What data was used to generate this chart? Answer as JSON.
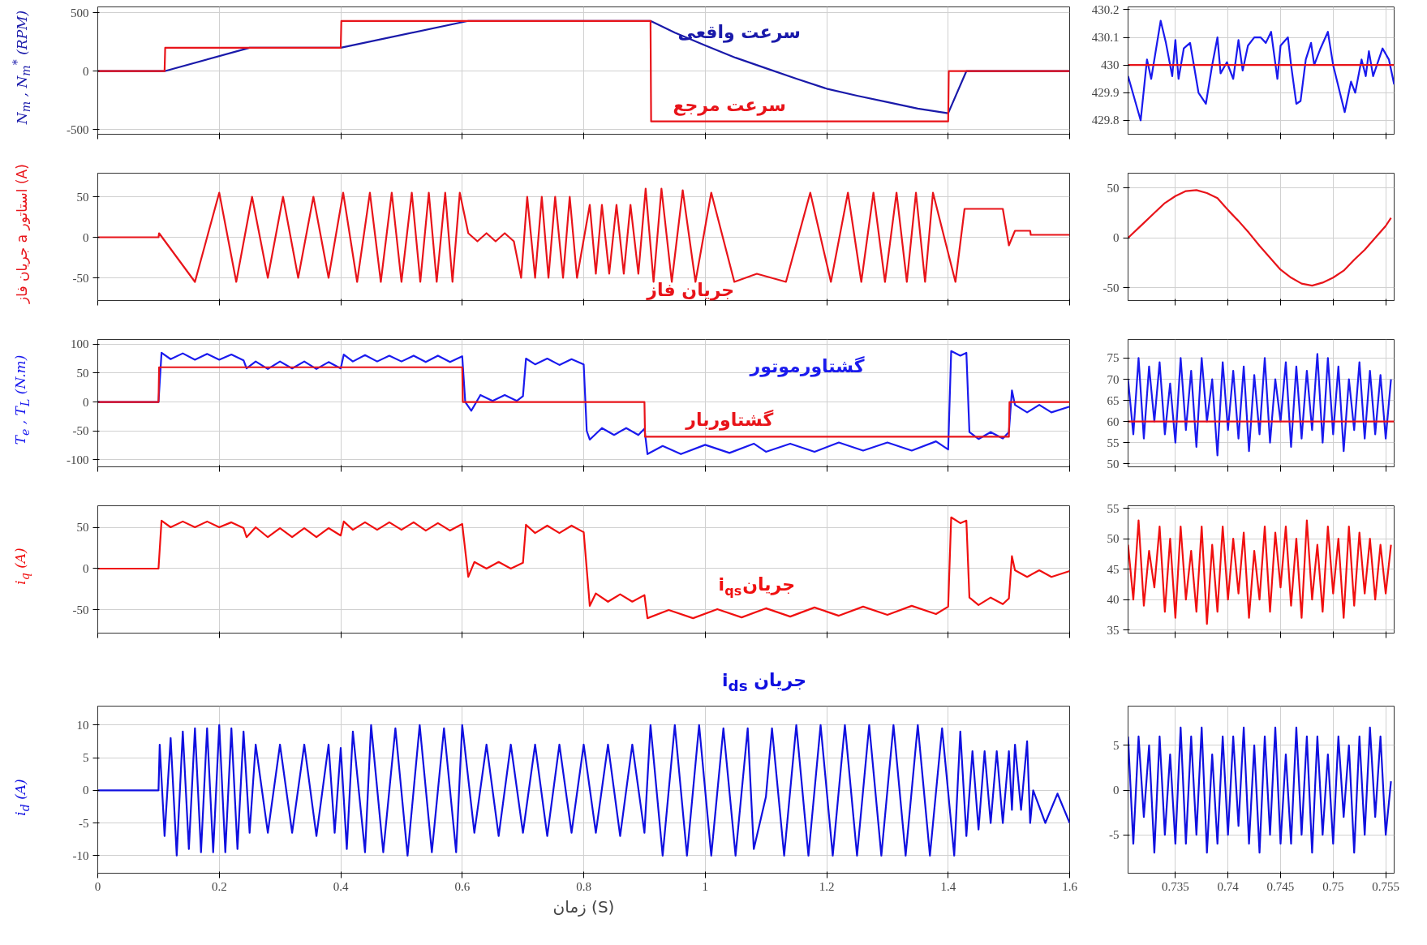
{
  "chart_data": [
    {
      "type": "line",
      "ylabel": "N$_{m}$ , N$_{m}$$^{*}$ (RPM)",
      "xlim": [
        0,
        1.6
      ],
      "xticks": [
        0,
        0.2,
        0.4,
        0.6,
        0.8,
        1,
        1.2,
        1.4,
        1.6
      ],
      "ylim": [
        -540,
        550
      ],
      "yticks": [
        -500,
        0,
        500
      ],
      "grid": true,
      "tick_labels": "y",
      "series": [
        {
          "color": "#1a1aaa",
          "x": [
            0,
            0.11,
            0.25,
            0.4,
            0.61,
            0.91,
            0.95,
            1.0,
            1.05,
            1.1,
            1.15,
            1.2,
            1.25,
            1.3,
            1.35,
            1.4,
            1.43,
            1.6
          ],
          "values": [
            0,
            0,
            200,
            200,
            430,
            430,
            330,
            220,
            115,
            25,
            -65,
            -150,
            -210,
            -265,
            -320,
            -360,
            0,
            0
          ]
        },
        {
          "color": "#e8141a",
          "x": [
            0,
            0.11,
            0.111,
            0.4,
            0.401,
            0.91,
            0.911,
            1.4,
            1.401,
            1.6
          ],
          "values": [
            0,
            0,
            200,
            200,
            430,
            430,
            -430,
            -430,
            0,
            0
          ]
        }
      ],
      "annotations": [
        "سرعت واقعی",
        "سرعت مرجع"
      ]
    },
    {
      "type": "line",
      "xlim": [
        0.7305,
        0.7558
      ],
      "xticks": [
        0.735,
        0.74,
        0.745,
        0.75,
        0.755
      ],
      "ylim": [
        429.75,
        430.21
      ],
      "yticks": [
        429.8,
        429.9,
        430,
        430.1,
        430.2
      ],
      "grid": true,
      "tick_labels": "y",
      "series": [
        {
          "color": "#1a1aee",
          "x": [
            0.7305,
            0.7317,
            0.7323,
            0.7327,
            0.7336,
            0.7341,
            0.7347,
            0.735,
            0.7353,
            0.7358,
            0.7364,
            0.7372,
            0.7379,
            0.7385,
            0.739,
            0.7393,
            0.7399,
            0.7405,
            0.741,
            0.7414,
            0.7419,
            0.7425,
            0.7431,
            0.7436,
            0.7441,
            0.7447,
            0.745,
            0.7457,
            0.746,
            0.7465,
            0.7469,
            0.7474,
            0.7479,
            0.7482,
            0.7488,
            0.7495,
            0.75,
            0.7511,
            0.7517,
            0.7521,
            0.7527,
            0.7531,
            0.7534,
            0.7538,
            0.7547,
            0.7553,
            0.7558
          ],
          "values": [
            429.96,
            429.8,
            430.02,
            429.95,
            430.16,
            430.08,
            429.96,
            430.09,
            429.95,
            430.06,
            430.08,
            429.9,
            429.86,
            430.0,
            430.1,
            429.97,
            430.01,
            429.95,
            430.09,
            429.98,
            430.07,
            430.1,
            430.1,
            430.08,
            430.12,
            429.95,
            430.07,
            430.1,
            430.0,
            429.86,
            429.87,
            430.02,
            430.08,
            430.0,
            430.06,
            430.12,
            430.0,
            429.83,
            429.94,
            429.9,
            430.02,
            429.96,
            430.05,
            429.96,
            430.06,
            430.02,
            429.93
          ]
        },
        {
          "color": "#e8141a",
          "x": [
            0.7305,
            0.7558
          ],
          "values": [
            430,
            430
          ]
        }
      ]
    },
    {
      "type": "line",
      "ylabel": "جریان فاز a استاتور (A)",
      "xlim": [
        0,
        1.6
      ],
      "xticks": [
        0,
        0.2,
        0.4,
        0.6,
        0.8,
        1,
        1.2,
        1.4,
        1.6
      ],
      "ylim": [
        -78,
        79
      ],
      "yticks": [
        -50,
        0,
        50
      ],
      "grid": true,
      "tick_labels": "y",
      "series": [
        {
          "color": "#e8141a",
          "x": [
            0,
            0.1,
            0.101,
            0.16,
            0.2,
            0.228,
            0.254,
            0.28,
            0.305,
            0.33,
            0.355,
            0.38,
            0.404,
            0.427,
            0.448,
            0.466,
            0.484,
            0.5,
            0.517,
            0.531,
            0.545,
            0.558,
            0.572,
            0.584,
            0.596,
            0.61,
            0.625,
            0.64,
            0.655,
            0.67,
            0.685,
            0.697,
            0.707,
            0.72,
            0.731,
            0.742,
            0.753,
            0.766,
            0.777,
            0.789,
            0.81,
            0.82,
            0.83,
            0.842,
            0.854,
            0.866,
            0.877,
            0.89,
            0.902,
            0.915,
            0.928,
            0.945,
            0.963,
            0.984,
            1.01,
            1.048,
            1.085,
            1.133,
            1.173,
            1.207,
            1.235,
            1.257,
            1.277,
            1.296,
            1.315,
            1.332,
            1.347,
            1.362,
            1.375,
            1.412,
            1.427,
            1.49,
            1.5,
            1.51,
            1.535,
            1.536,
            1.6
          ],
          "values": [
            0,
            0,
            5,
            -55,
            55,
            -55,
            50,
            -50,
            50,
            -50,
            50,
            -50,
            55,
            -55,
            55,
            -55,
            55,
            -55,
            55,
            -55,
            55,
            -55,
            55,
            -55,
            55,
            5,
            -5,
            5,
            -5,
            5,
            -5,
            -50,
            50,
            -50,
            50,
            -50,
            50,
            -50,
            50,
            -50,
            40,
            -45,
            40,
            -45,
            40,
            -45,
            40,
            -45,
            60,
            -55,
            60,
            -55,
            58,
            -55,
            55,
            -55,
            -45,
            -55,
            55,
            -55,
            55,
            -55,
            55,
            -55,
            55,
            -55,
            55,
            -55,
            55,
            -55,
            35,
            35,
            -10,
            8,
            8,
            3,
            3
          ]
        }
      ],
      "annotations": [
        "جریان فاز"
      ]
    },
    {
      "type": "line",
      "xlim": [
        0.7305,
        0.7558
      ],
      "xticks": [
        0.735,
        0.74,
        0.745,
        0.75,
        0.755
      ],
      "ylim": [
        -63,
        65
      ],
      "yticks": [
        -50,
        0,
        50
      ],
      "grid": true,
      "tick_labels": "y",
      "series": [
        {
          "color": "#e8141a",
          "x": [
            0.7305,
            0.732,
            0.733,
            0.734,
            0.735,
            0.736,
            0.737,
            0.738,
            0.739,
            0.74,
            0.741,
            0.742,
            0.743,
            0.744,
            0.745,
            0.746,
            0.747,
            0.748,
            0.749,
            0.75,
            0.751,
            0.752,
            0.753,
            0.754,
            0.755,
            0.7555
          ],
          "values": [
            0,
            15,
            25,
            35,
            42,
            47,
            48,
            45,
            40,
            28,
            17,
            5,
            -8,
            -20,
            -32,
            -40,
            -46,
            -48,
            -45,
            -40,
            -33,
            -22,
            -12,
            0,
            12,
            20
          ]
        }
      ]
    },
    {
      "type": "line",
      "ylabel": "T$_{e}$ , T$_{L}$ (N.m)",
      "xlim": [
        0,
        1.6
      ],
      "xticks": [
        0,
        0.2,
        0.4,
        0.6,
        0.8,
        1,
        1.2,
        1.4,
        1.6
      ],
      "ylim": [
        -112,
        108
      ],
      "yticks": [
        -100,
        -50,
        0,
        50,
        100
      ],
      "grid": true,
      "tick_labels": "y",
      "series": [
        {
          "color": "#1a1aee",
          "x": [
            0,
            0.1,
            0.105,
            0.12,
            0.14,
            0.16,
            0.18,
            0.2,
            0.22,
            0.24,
            0.245,
            0.26,
            0.28,
            0.3,
            0.32,
            0.34,
            0.36,
            0.38,
            0.4,
            0.405,
            0.42,
            0.44,
            0.46,
            0.48,
            0.5,
            0.52,
            0.54,
            0.56,
            0.58,
            0.6,
            0.605,
            0.615,
            0.63,
            0.65,
            0.67,
            0.69,
            0.7,
            0.705,
            0.72,
            0.74,
            0.76,
            0.78,
            0.8,
            0.805,
            0.81,
            0.83,
            0.85,
            0.87,
            0.89,
            0.9,
            0.905,
            0.93,
            0.96,
            1.0,
            1.04,
            1.08,
            1.1,
            1.14,
            1.18,
            1.22,
            1.26,
            1.3,
            1.34,
            1.38,
            1.4,
            1.405,
            1.42,
            1.43,
            1.435,
            1.45,
            1.47,
            1.49,
            1.5,
            1.505,
            1.51,
            1.53,
            1.55,
            1.57,
            1.6
          ],
          "values": [
            0,
            0,
            85,
            74,
            84,
            73,
            83,
            73,
            82,
            72,
            58,
            70,
            57,
            70,
            58,
            70,
            57,
            69,
            58,
            82,
            70,
            81,
            70,
            80,
            70,
            80,
            69,
            80,
            69,
            79,
            0,
            -15,
            12,
            2,
            12,
            2,
            10,
            75,
            65,
            75,
            64,
            74,
            65,
            -50,
            -65,
            -45,
            -57,
            -45,
            -57,
            -46,
            -90,
            -76,
            -90,
            -74,
            -88,
            -72,
            -86,
            -72,
            -86,
            -70,
            -84,
            -70,
            -84,
            -68,
            -82,
            88,
            80,
            85,
            -52,
            -64,
            -52,
            -63,
            -52,
            20,
            -5,
            -18,
            -5,
            -18,
            -8
          ]
        },
        {
          "color": "#e8141a",
          "x": [
            0,
            0.1,
            0.101,
            0.6,
            0.601,
            0.9,
            0.901,
            1.5,
            1.501,
            1.6
          ],
          "values": [
            0,
            0,
            60,
            60,
            0,
            0,
            -60,
            -60,
            0,
            0
          ]
        }
      ],
      "annotations": [
        "گشتاورموتور",
        "گشتاوربار"
      ]
    },
    {
      "type": "line",
      "xlim": [
        0.7305,
        0.7558
      ],
      "xticks": [
        0.735,
        0.74,
        0.745,
        0.75,
        0.755
      ],
      "ylim": [
        49.3,
        79.4
      ],
      "yticks": [
        50,
        55,
        60,
        65,
        70,
        75
      ],
      "grid": true,
      "tick_labels": "y",
      "series": [
        {
          "color": "#1a1aee",
          "x": [
            0.7305,
            0.731,
            0.7315,
            0.732,
            0.7325,
            0.733,
            0.7335,
            0.734,
            0.7345,
            0.735,
            0.7355,
            0.736,
            0.7365,
            0.737,
            0.7375,
            0.738,
            0.7385,
            0.739,
            0.7395,
            0.74,
            0.7405,
            0.741,
            0.7415,
            0.742,
            0.7425,
            0.743,
            0.7435,
            0.744,
            0.7445,
            0.745,
            0.7455,
            0.746,
            0.7465,
            0.747,
            0.7475,
            0.748,
            0.7485,
            0.749,
            0.7495,
            0.75,
            0.7505,
            0.751,
            0.7515,
            0.752,
            0.7525,
            0.753,
            0.7535,
            0.754,
            0.7545,
            0.755,
            0.7555
          ],
          "values": [
            70,
            57,
            75,
            56,
            73,
            60,
            74,
            57,
            69,
            55,
            75,
            58,
            72,
            54,
            75,
            60,
            70,
            52,
            74,
            58,
            72,
            56,
            73,
            53,
            71,
            57,
            75,
            55,
            70,
            60,
            74,
            54,
            73,
            56,
            72,
            58,
            76,
            55,
            75,
            57,
            73,
            53,
            70,
            58,
            74,
            56,
            72,
            57,
            71,
            56,
            70
          ]
        },
        {
          "color": "#e8141a",
          "x": [
            0.7305,
            0.7558
          ],
          "values": [
            60,
            60
          ]
        }
      ]
    },
    {
      "type": "line",
      "ylabel": "i$_{q}$ (A)",
      "xlim": [
        0,
        1.6
      ],
      "xticks": [
        0,
        0.2,
        0.4,
        0.6,
        0.8,
        1,
        1.2,
        1.4,
        1.6
      ],
      "ylim": [
        -78,
        76
      ],
      "yticks": [
        -50,
        0,
        50
      ],
      "grid": true,
      "tick_labels": "y",
      "series": [
        {
          "color": "#f01010",
          "x": [
            0,
            0.1,
            0.105,
            0.12,
            0.14,
            0.16,
            0.18,
            0.2,
            0.22,
            0.24,
            0.245,
            0.26,
            0.28,
            0.3,
            0.32,
            0.34,
            0.36,
            0.38,
            0.4,
            0.405,
            0.42,
            0.44,
            0.46,
            0.48,
            0.5,
            0.52,
            0.54,
            0.56,
            0.58,
            0.6,
            0.61,
            0.62,
            0.64,
            0.66,
            0.68,
            0.7,
            0.705,
            0.72,
            0.74,
            0.76,
            0.78,
            0.8,
            0.81,
            0.82,
            0.84,
            0.86,
            0.88,
            0.9,
            0.905,
            0.94,
            0.98,
            1.02,
            1.06,
            1.1,
            1.14,
            1.18,
            1.22,
            1.26,
            1.3,
            1.34,
            1.38,
            1.4,
            1.405,
            1.42,
            1.43,
            1.435,
            1.45,
            1.47,
            1.49,
            1.5,
            1.505,
            1.51,
            1.53,
            1.55,
            1.57,
            1.6
          ],
          "values": [
            0,
            0,
            58,
            50,
            57,
            50,
            57,
            50,
            56,
            49,
            38,
            50,
            38,
            49,
            38,
            49,
            38,
            49,
            40,
            57,
            47,
            56,
            47,
            56,
            47,
            56,
            46,
            55,
            46,
            54,
            -10,
            8,
            0,
            8,
            0,
            7,
            53,
            43,
            52,
            43,
            52,
            44,
            -45,
            -30,
            -40,
            -31,
            -40,
            -32,
            -60,
            -50,
            -60,
            -49,
            -59,
            -48,
            -58,
            -47,
            -57,
            -46,
            -56,
            -45,
            -55,
            -46,
            62,
            55,
            58,
            -35,
            -44,
            -35,
            -43,
            -36,
            15,
            -2,
            -10,
            -2,
            -10,
            -3
          ]
        }
      ],
      "annotations": [
        "جریان i$_{qs}$"
      ]
    },
    {
      "type": "line",
      "xlim": [
        0.7305,
        0.7558
      ],
      "xticks": [
        0.735,
        0.74,
        0.745,
        0.75,
        0.755
      ],
      "ylim": [
        34.5,
        55.4
      ],
      "yticks": [
        35,
        40,
        45,
        50,
        55
      ],
      "grid": true,
      "tick_labels": "y",
      "series": [
        {
          "color": "#f01010",
          "x": [
            0.7305,
            0.731,
            0.7315,
            0.732,
            0.7325,
            0.733,
            0.7335,
            0.734,
            0.7345,
            0.735,
            0.7355,
            0.736,
            0.7365,
            0.737,
            0.7375,
            0.738,
            0.7385,
            0.739,
            0.7395,
            0.74,
            0.7405,
            0.741,
            0.7415,
            0.742,
            0.7425,
            0.743,
            0.7435,
            0.744,
            0.7445,
            0.745,
            0.7455,
            0.746,
            0.7465,
            0.747,
            0.7475,
            0.748,
            0.7485,
            0.749,
            0.7495,
            0.75,
            0.7505,
            0.751,
            0.7515,
            0.752,
            0.7525,
            0.753,
            0.7535,
            0.754,
            0.7545,
            0.755,
            0.7555
          ],
          "values": [
            49,
            40,
            53,
            39,
            48,
            42,
            52,
            38,
            50,
            37,
            52,
            40,
            48,
            38,
            52,
            36,
            49,
            38,
            52,
            40,
            50,
            41,
            51,
            37,
            48,
            40,
            52,
            38,
            51,
            42,
            52,
            39,
            50,
            37,
            53,
            40,
            49,
            38,
            52,
            41,
            50,
            37,
            52,
            39,
            51,
            41,
            50,
            40,
            49,
            41,
            49
          ]
        }
      ]
    },
    {
      "type": "line",
      "ylabel": "i$_{d}$ (A)",
      "xlabel": "زمان (S)",
      "xlim": [
        0,
        1.6
      ],
      "xticks": [
        0,
        0.2,
        0.4,
        0.6,
        0.8,
        1,
        1.2,
        1.4,
        1.6
      ],
      "ylim": [
        -12.7,
        12.9
      ],
      "yticks": [
        -10,
        -5,
        0,
        5,
        10
      ],
      "grid": true,
      "series": [
        {
          "color": "#1010e0",
          "x": [
            0,
            0.1,
            0.102,
            0.11,
            0.12,
            0.13,
            0.14,
            0.15,
            0.16,
            0.17,
            0.18,
            0.19,
            0.2,
            0.21,
            0.22,
            0.23,
            0.24,
            0.25,
            0.26,
            0.28,
            0.3,
            0.32,
            0.34,
            0.36,
            0.38,
            0.39,
            0.4,
            0.41,
            0.42,
            0.44,
            0.45,
            0.47,
            0.49,
            0.51,
            0.53,
            0.55,
            0.57,
            0.59,
            0.6,
            0.62,
            0.64,
            0.66,
            0.68,
            0.7,
            0.72,
            0.74,
            0.76,
            0.78,
            0.8,
            0.82,
            0.84,
            0.86,
            0.88,
            0.9,
            0.91,
            0.93,
            0.95,
            0.97,
            0.99,
            1.01,
            1.03,
            1.05,
            1.07,
            1.08,
            1.1,
            1.11,
            1.13,
            1.15,
            1.17,
            1.19,
            1.21,
            1.23,
            1.25,
            1.27,
            1.29,
            1.31,
            1.33,
            1.35,
            1.37,
            1.39,
            1.41,
            1.42,
            1.43,
            1.44,
            1.45,
            1.46,
            1.47,
            1.48,
            1.49,
            1.5,
            1.505,
            1.51,
            1.52,
            1.53,
            1.535,
            1.54,
            1.56,
            1.58,
            1.6
          ],
          "values": [
            0,
            0,
            7,
            -7,
            8,
            -10,
            9,
            -9,
            9.5,
            -9.5,
            9.5,
            -9.5,
            10,
            -9.5,
            9.5,
            -9,
            9,
            -6.5,
            7,
            -6.5,
            7,
            -6.5,
            7,
            -7,
            7,
            -6.5,
            6.5,
            -9,
            9,
            -9.5,
            10,
            -9.5,
            9.5,
            -10,
            10,
            -9.5,
            9.5,
            -9.5,
            10,
            -6.5,
            7,
            -7,
            7,
            -6.5,
            7,
            -7,
            7,
            -6.5,
            7,
            -6.5,
            7,
            -7,
            7,
            -6.5,
            10,
            -10,
            10,
            -10,
            10,
            -10,
            9.5,
            -10,
            9.5,
            -9,
            -1,
            9.5,
            -10,
            10,
            -10,
            10,
            -10,
            10,
            -10,
            10,
            -10,
            10,
            -10,
            10,
            -10,
            9.5,
            -10,
            9,
            -7,
            6,
            -6,
            6,
            -5,
            6,
            -5,
            6,
            -3,
            7,
            -3,
            7.5,
            -5,
            0,
            -5,
            -0.5,
            -5
          ]
        }
      ],
      "annotations": [
        "جریان i$_{ds}$"
      ]
    },
    {
      "type": "line",
      "xlim": [
        0.7305,
        0.7558
      ],
      "xticks": [
        0.735,
        0.74,
        0.745,
        0.75,
        0.755
      ],
      "ylim": [
        -9.3,
        9.4
      ],
      "yticks": [
        -5,
        0,
        5
      ],
      "grid": true,
      "series": [
        {
          "color": "#1010e0",
          "x": [
            0.7305,
            0.731,
            0.7315,
            0.732,
            0.7325,
            0.733,
            0.7335,
            0.734,
            0.7345,
            0.735,
            0.7355,
            0.736,
            0.7365,
            0.737,
            0.7375,
            0.738,
            0.7385,
            0.739,
            0.7395,
            0.74,
            0.7405,
            0.741,
            0.7415,
            0.742,
            0.7425,
            0.743,
            0.7435,
            0.744,
            0.7445,
            0.745,
            0.7455,
            0.746,
            0.7465,
            0.747,
            0.7475,
            0.748,
            0.7485,
            0.749,
            0.7495,
            0.75,
            0.7505,
            0.751,
            0.7515,
            0.752,
            0.7525,
            0.753,
            0.7535,
            0.754,
            0.7545,
            0.755,
            0.7555
          ],
          "values": [
            6,
            -6,
            6,
            -3,
            5,
            -7,
            6,
            -5,
            4,
            -6,
            7,
            -6,
            6,
            -5,
            7,
            -7,
            4,
            -6,
            6,
            -5,
            6,
            -4,
            7,
            -6,
            5,
            -7,
            6,
            -5,
            7,
            -6,
            4,
            -6,
            7,
            -5,
            6,
            -7,
            6,
            -5,
            4,
            -6,
            6,
            -3,
            5,
            -7,
            6,
            -5,
            7,
            -3,
            6,
            -5,
            1
          ]
        }
      ]
    }
  ]
}
